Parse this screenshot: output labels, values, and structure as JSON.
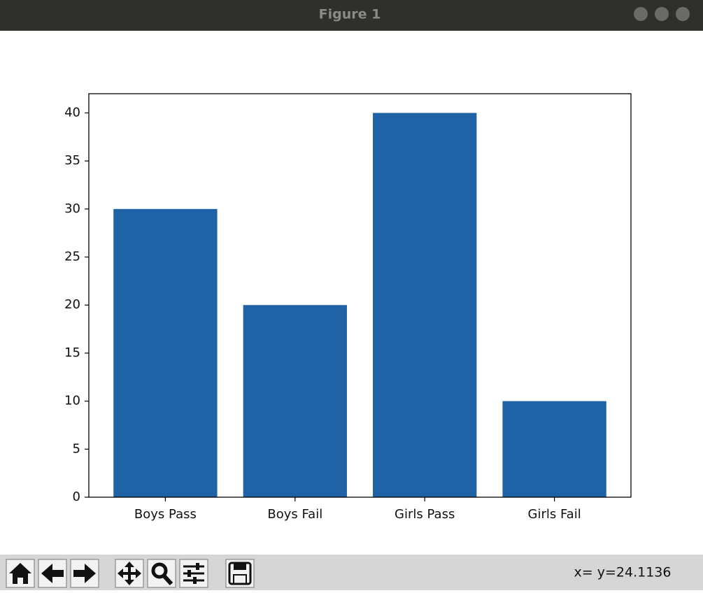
{
  "window": {
    "title": "Figure 1",
    "status": "x= y=24.1136"
  },
  "chart_data": {
    "type": "bar",
    "categories": [
      "Boys Pass",
      "Boys Fail",
      "Girls Pass",
      "Girls Fail"
    ],
    "values": [
      30,
      20,
      40,
      10
    ],
    "color": "#1f63a6",
    "ylim": [
      0,
      42
    ],
    "yticks": [
      0,
      5,
      10,
      15,
      20,
      25,
      30,
      35,
      40
    ],
    "grid": false
  }
}
